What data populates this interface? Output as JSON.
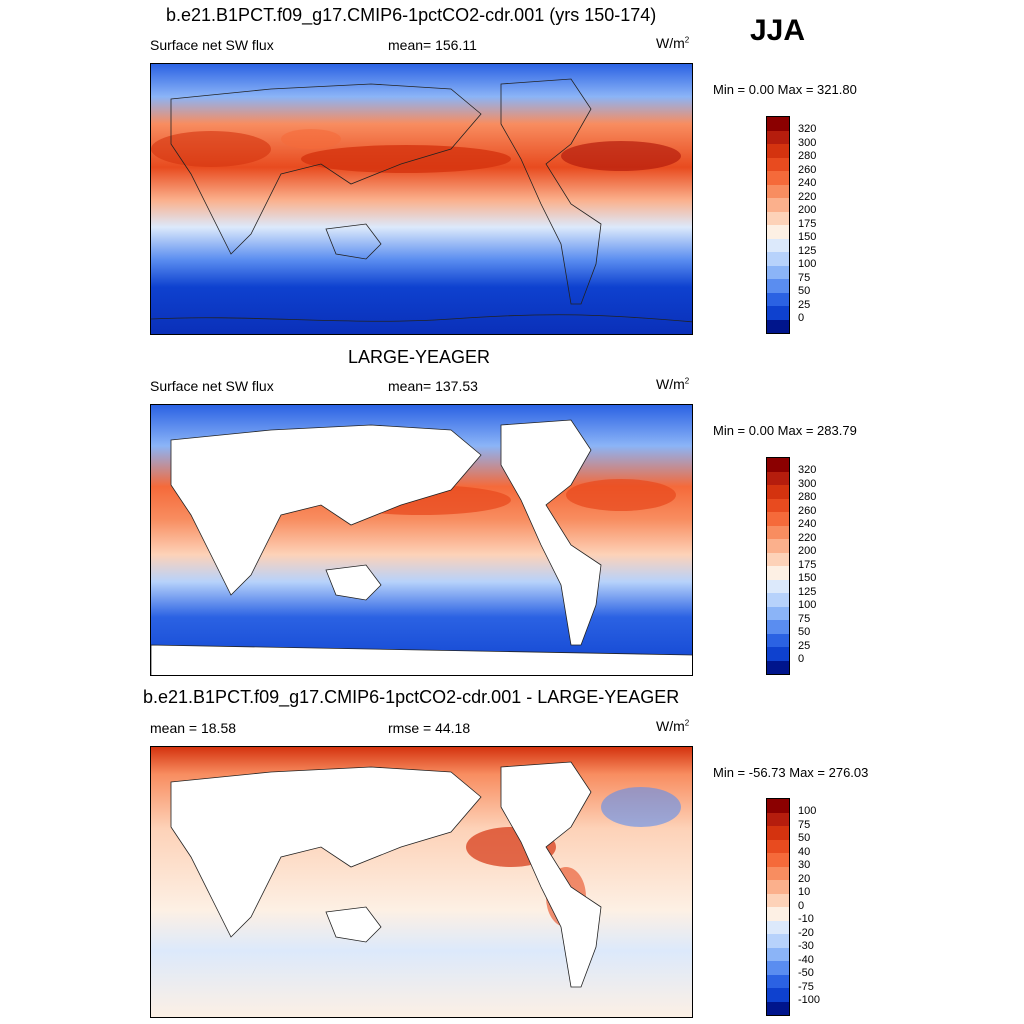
{
  "season": "JJA",
  "panels": [
    {
      "title": "b.e21.B1PCT.f09_g17.CMIP6-1pctCO2-cdr.001 (yrs 150-174)",
      "left_label": "Surface net SW flux",
      "center_label": "mean= 156.11",
      "units": "W/m",
      "units_sup": "2",
      "minmax": "Min =   0.00 Max = 321.80",
      "colorbar": {
        "levels": [
          "320",
          "300",
          "280",
          "260",
          "240",
          "220",
          "200",
          "175",
          "150",
          "125",
          "100",
          "75",
          "50",
          "25",
          "0"
        ],
        "colors": [
          "#8b0000",
          "#b51d0d",
          "#d4330f",
          "#e84b1f",
          "#f56a3a",
          "#f88d60",
          "#fbb08c",
          "#fdd2b8",
          "#fdf0e4",
          "#dce9fb",
          "#b7d2fb",
          "#8bb4f7",
          "#5a8df0",
          "#2b62e3",
          "#0e41cf",
          "#00158c"
        ]
      }
    },
    {
      "title": "LARGE-YEAGER",
      "left_label": "Surface net SW flux",
      "center_label": "mean= 137.53",
      "units": "W/m",
      "units_sup": "2",
      "minmax": "Min =   0.00 Max = 283.79",
      "colorbar": {
        "levels": [
          "320",
          "300",
          "280",
          "260",
          "240",
          "220",
          "200",
          "175",
          "150",
          "125",
          "100",
          "75",
          "50",
          "25",
          "0"
        ],
        "colors": [
          "#8b0000",
          "#b51d0d",
          "#d4330f",
          "#e84b1f",
          "#f56a3a",
          "#f88d60",
          "#fbb08c",
          "#fdd2b8",
          "#fdf0e4",
          "#dce9fb",
          "#b7d2fb",
          "#8bb4f7",
          "#5a8df0",
          "#2b62e3",
          "#0e41cf",
          "#00158c"
        ]
      }
    },
    {
      "title": "b.e21.B1PCT.f09_g17.CMIP6-1pctCO2-cdr.001 - LARGE-YEAGER",
      "left_label": "mean =  18.58",
      "center_label": "rmse =  44.18",
      "units": "W/m",
      "units_sup": "2",
      "minmax": "Min = -56.73 Max = 276.03",
      "colorbar": {
        "levels": [
          "100",
          "75",
          "50",
          "40",
          "30",
          "20",
          "10",
          "0",
          "-10",
          "-20",
          "-30",
          "-40",
          "-50",
          "-75",
          "-100"
        ],
        "colors": [
          "#8b0000",
          "#b51d0d",
          "#d4330f",
          "#e84b1f",
          "#f56a3a",
          "#f88d60",
          "#fbb08c",
          "#fdd2b8",
          "#fdf0e4",
          "#dce9fb",
          "#b7d2fb",
          "#8bb4f7",
          "#5a8df0",
          "#2b62e3",
          "#0e41cf",
          "#00158c"
        ]
      }
    }
  ]
}
